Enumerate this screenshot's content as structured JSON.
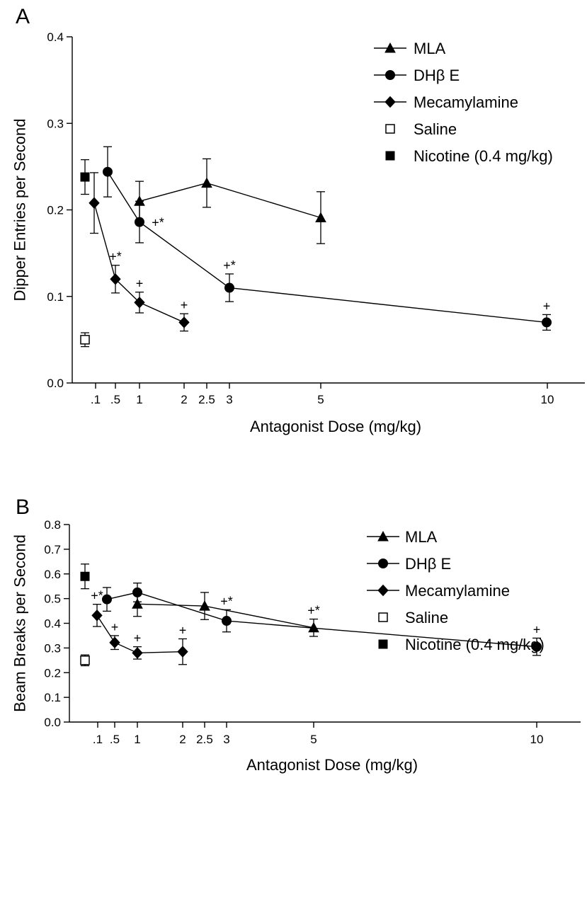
{
  "chart_data": [
    {
      "type": "line",
      "panel_label": "A",
      "xlabel": "Antagonist Dose (mg/kg)",
      "ylabel": "Dipper Entries per Second",
      "ylim": [
        0,
        0.4
      ],
      "y_ticks": [
        "0.0",
        "0.1",
        "0.2",
        "0.3",
        "0.4"
      ],
      "x_ticks": [
        ".1",
        ".5",
        "1",
        "2",
        "2.5",
        "3",
        "5",
        "10"
      ],
      "legend_position": "top-right",
      "series": [
        {
          "name": "MLA",
          "marker": "triangle",
          "points": [
            {
              "x": "1",
              "y": 0.21,
              "err": 0.023
            },
            {
              "x": "2.5",
              "y": 0.231,
              "err": 0.028
            },
            {
              "x": "5",
              "y": 0.191,
              "err": 0.03
            }
          ]
        },
        {
          "name": "DHβ E",
          "marker": "circle",
          "points": [
            {
              "x": ".5",
              "y": 0.244,
              "err": 0.029
            },
            {
              "x": "1",
              "y": 0.186,
              "err": 0.024
            },
            {
              "x": "3",
              "y": 0.11,
              "err": 0.016
            },
            {
              "x": "10",
              "y": 0.07,
              "err": 0.009
            }
          ]
        },
        {
          "name": "Mecamylamine",
          "marker": "diamond",
          "points": [
            {
              "x": ".1",
              "y": 0.208,
              "err": 0.035
            },
            {
              "x": ".5",
              "y": 0.12,
              "err": 0.016
            },
            {
              "x": "1",
              "y": 0.093,
              "err": 0.012
            },
            {
              "x": "2",
              "y": 0.07,
              "err": 0.01
            }
          ]
        },
        {
          "name": "Saline",
          "marker": "open-square",
          "points": [
            {
              "x": "control",
              "y": 0.05,
              "err": 0.008
            }
          ]
        },
        {
          "name": "Nicotine (0.4 mg/kg)",
          "marker": "filled-square",
          "points": [
            {
              "x": "control",
              "y": 0.238,
              "err": 0.02
            }
          ]
        }
      ],
      "annotations": [
        {
          "text": "+*",
          "series": "DHβ E",
          "x": "1"
        },
        {
          "text": "+*",
          "series": "Mecamylamine",
          "x": ".5"
        },
        {
          "text": "+",
          "series": "Mecamylamine",
          "x": "1"
        },
        {
          "text": "+",
          "series": "Mecamylamine",
          "x": "2"
        },
        {
          "text": "+*",
          "series": "DHβ E",
          "x": "3"
        },
        {
          "text": "+",
          "series": "DHβ E",
          "x": "10"
        }
      ]
    },
    {
      "type": "line",
      "panel_label": "B",
      "xlabel": "Antagonist Dose (mg/kg)",
      "ylabel": "Beam Breaks per Second",
      "ylim": [
        0,
        0.8
      ],
      "y_ticks": [
        "0.0",
        "0.1",
        "0.2",
        "0.3",
        "0.4",
        "0.5",
        "0.6",
        "0.7",
        "0.8"
      ],
      "x_ticks": [
        ".1",
        ".5",
        "1",
        "2",
        "2.5",
        "3",
        "5",
        "10"
      ],
      "legend_position": "top-right",
      "series": [
        {
          "name": "MLA",
          "marker": "triangle",
          "points": [
            {
              "x": "1",
              "y": 0.478,
              "err": 0.05
            },
            {
              "x": "2.5",
              "y": 0.47,
              "err": 0.055
            },
            {
              "x": "5",
              "y": 0.382,
              "err": 0.035
            }
          ]
        },
        {
          "name": "DHβ E",
          "marker": "circle",
          "points": [
            {
              "x": ".5",
              "y": 0.497,
              "err": 0.048
            },
            {
              "x": "1",
              "y": 0.525,
              "err": 0.038
            },
            {
              "x": "3",
              "y": 0.41,
              "err": 0.045
            },
            {
              "x": "10",
              "y": 0.305,
              "err": 0.035
            }
          ]
        },
        {
          "name": "Mecamylamine",
          "marker": "diamond",
          "points": [
            {
              "x": ".1",
              "y": 0.432,
              "err": 0.045
            },
            {
              "x": ".5",
              "y": 0.322,
              "err": 0.028
            },
            {
              "x": "1",
              "y": 0.28,
              "err": 0.025
            },
            {
              "x": "2",
              "y": 0.285,
              "err": 0.052
            }
          ]
        },
        {
          "name": "Saline",
          "marker": "open-square",
          "points": [
            {
              "x": "control",
              "y": 0.25,
              "err": 0.022
            }
          ]
        },
        {
          "name": "Nicotine (0.4 mg/kg)",
          "marker": "filled-square",
          "points": [
            {
              "x": "control",
              "y": 0.59,
              "err": 0.05
            }
          ]
        }
      ],
      "annotations": [
        {
          "text": "+*",
          "series": "Mecamylamine",
          "x": ".1"
        },
        {
          "text": "+",
          "series": "Mecamylamine",
          "x": ".5"
        },
        {
          "text": "+",
          "series": "Mecamylamine",
          "x": "1"
        },
        {
          "text": "+",
          "series": "Mecamylamine",
          "x": "2"
        },
        {
          "text": "+*",
          "series": "DHβ E",
          "x": "3"
        },
        {
          "text": "+*",
          "series": "MLA",
          "x": "5"
        },
        {
          "text": "+",
          "series": "DHβ E",
          "x": "10"
        }
      ]
    }
  ]
}
